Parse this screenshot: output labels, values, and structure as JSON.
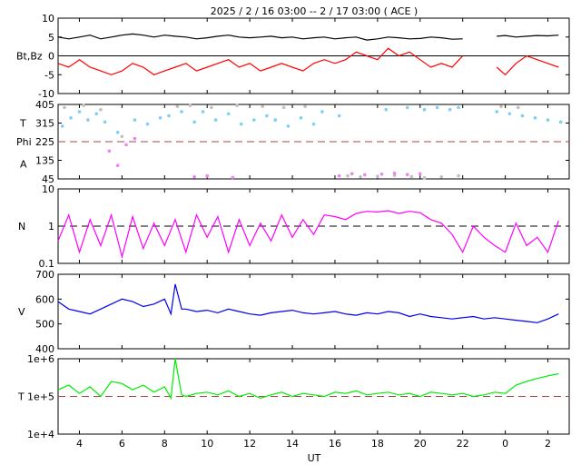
{
  "chart_data": {
    "title": "2025 /  2 / 16   03:00 -- 2 / 17   03:00 ( ACE )",
    "xlabel": "UT",
    "x_tick_labels": [
      "4",
      "6",
      "8",
      "10",
      "12",
      "14",
      "16",
      "18",
      "20",
      "22",
      "0",
      "2"
    ],
    "x_range_hours": [
      3,
      27
    ],
    "panels": [
      {
        "id": "mag",
        "type": "line",
        "ylabel": "Bt,Bz",
        "ylim": [
          -10,
          10
        ],
        "y_ticks": [
          "10",
          "5",
          "0",
          "-5",
          "-10"
        ],
        "zero_line": 0,
        "series": [
          {
            "name": "Bt",
            "color": "#000000",
            "x": [
              3.0,
              3.5,
              4.0,
              4.5,
              5.0,
              5.5,
              6.0,
              6.5,
              7.0,
              7.5,
              8.0,
              8.5,
              9.0,
              9.5,
              10.0,
              10.5,
              11.0,
              11.5,
              12.0,
              12.5,
              13.0,
              13.5,
              14.0,
              14.5,
              15.0,
              15.5,
              16.0,
              16.5,
              17.0,
              17.5,
              18.0,
              18.5,
              19.0,
              19.5,
              20.0,
              20.5,
              21.0,
              21.5,
              22.0,
              null,
              23.6,
              24.0,
              24.5,
              25.0,
              25.5,
              26.0,
              26.5
            ],
            "y": [
              5,
              4.5,
              5,
              5.5,
              4.5,
              5,
              5.5,
              5.8,
              5.5,
              5,
              5.5,
              5.2,
              5,
              4.5,
              4.8,
              5.2,
              5.5,
              5,
              4.8,
              5,
              5.2,
              4.8,
              5,
              4.5,
              4.8,
              5,
              4.5,
              4.8,
              5,
              4.2,
              4.5,
              5,
              4.8,
              4.5,
              4.6,
              5,
              4.8,
              4.4,
              4.5,
              null,
              5.2,
              5.4,
              5,
              5.2,
              5.4,
              5.3,
              5.5
            ]
          },
          {
            "name": "Bz",
            "color": "#ff0000",
            "x": [
              3.0,
              3.5,
              4.0,
              4.5,
              5.0,
              5.5,
              6.0,
              6.5,
              7.0,
              7.5,
              8.0,
              8.5,
              9.0,
              9.5,
              10.0,
              10.5,
              11.0,
              11.5,
              12.0,
              12.5,
              13.0,
              13.5,
              14.0,
              14.5,
              15.0,
              15.5,
              16.0,
              16.5,
              17.0,
              17.5,
              18.0,
              18.5,
              19.0,
              19.5,
              20.0,
              20.5,
              21.0,
              21.5,
              22.0,
              null,
              23.6,
              24.0,
              24.5,
              25.0,
              25.5,
              26.0,
              26.5
            ],
            "y": [
              -2,
              -3,
              -1,
              -3,
              -4,
              -5,
              -4,
              -2,
              -3,
              -5,
              -4,
              -3,
              -2,
              -4,
              -3,
              -2,
              -1,
              -3,
              -2,
              -4,
              -3,
              -2,
              -3,
              -4,
              -2,
              -1,
              -2,
              -1,
              1,
              0,
              -1,
              2,
              0,
              1,
              -1,
              -3,
              -2,
              -3,
              0,
              null,
              -3,
              -5,
              -2,
              0,
              -1,
              -2,
              -3
            ]
          }
        ]
      },
      {
        "id": "angles",
        "type": "scatter",
        "ylabel_top": "T",
        "ylabel_mid": "Phi",
        "ylabel_bot": "A",
        "ylim": [
          45,
          405
        ],
        "y_ticks": [
          "405",
          "315",
          "225",
          "135",
          "45"
        ],
        "dashed_line": 225,
        "dashed_color": "#aa4444",
        "series": [
          {
            "name": "light-blue",
            "color": "#7fcff5",
            "x": [
              3.2,
              3.6,
              4.0,
              4.4,
              4.8,
              5.2,
              5.8,
              6.6,
              7.2,
              7.8,
              8.2,
              8.8,
              9.4,
              9.8,
              10.4,
              11.0,
              11.6,
              12.2,
              12.8,
              13.2,
              13.8,
              14.4,
              15.0,
              15.4,
              16.2,
              18.4,
              19.4,
              20.2,
              20.8,
              21.4,
              21.8,
              23.6,
              24.2,
              24.8,
              25.4,
              26.0,
              26.6
            ],
            "y": [
              300,
              340,
              370,
              330,
              360,
              320,
              270,
              330,
              310,
              340,
              350,
              370,
              320,
              370,
              330,
              360,
              310,
              330,
              350,
              330,
              300,
              340,
              310,
              370,
              350,
              380,
              390,
              380,
              390,
              380,
              390,
              370,
              360,
              350,
              340,
              330,
              320
            ]
          },
          {
            "name": "gray",
            "color": "#c0c0c0",
            "x": [
              3.3,
              4.2,
              5.0,
              6.0,
              8.6,
              9.2,
              10.2,
              11.4,
              12.6,
              13.6,
              14.6,
              16.6,
              17.2,
              18.0,
              18.8,
              19.6,
              20.2,
              21.0,
              21.8,
              23.8,
              24.6
            ],
            "y": [
              390,
              400,
              380,
              250,
              395,
              400,
              390,
              400,
              395,
              390,
              395,
              60,
              55,
              58,
              62,
              56,
              50,
              55,
              60,
              395,
              390
            ]
          },
          {
            "name": "magenta",
            "color": "#ee82ee",
            "x": [
              5.4,
              5.8,
              6.2,
              6.6,
              9.4,
              10.0,
              11.2,
              16.2,
              16.8,
              17.4,
              18.2,
              18.8,
              19.4,
              20.0
            ],
            "y": [
              180,
              110,
              210,
              240,
              55,
              60,
              52,
              60,
              70,
              65,
              68,
              72,
              66,
              70
            ]
          }
        ]
      },
      {
        "id": "density",
        "type": "line",
        "ylabel": "N",
        "scale": "log",
        "ylim": [
          0.1,
          10
        ],
        "y_ticks": [
          "10",
          "1",
          "0.1"
        ],
        "dashed_line": 1,
        "series": [
          {
            "name": "N",
            "color": "#ff00ff",
            "x": [
              3.0,
              3.5,
              4.0,
              4.5,
              5.0,
              5.5,
              6.0,
              6.5,
              7.0,
              7.5,
              8.0,
              8.5,
              9.0,
              9.5,
              10.0,
              10.5,
              11.0,
              11.5,
              12.0,
              12.5,
              13.0,
              13.5,
              14.0,
              14.5,
              15.0,
              15.5,
              16.0,
              16.5,
              17.0,
              17.5,
              18.0,
              18.5,
              19.0,
              19.5,
              20.0,
              20.5,
              21.0,
              21.5,
              22.0,
              22.5,
              23.0,
              23.5,
              24.0,
              24.5,
              25.0,
              25.5,
              26.0,
              26.5
            ],
            "y": [
              0.4,
              2,
              0.2,
              1.5,
              0.3,
              2,
              0.15,
              1.8,
              0.25,
              1.2,
              0.3,
              1.5,
              0.2,
              2,
              0.5,
              1.8,
              0.2,
              1.5,
              0.3,
              1.2,
              0.4,
              2,
              0.5,
              1.5,
              0.6,
              2,
              1.8,
              1.5,
              2.2,
              2.5,
              2.4,
              2.6,
              2.2,
              2.5,
              2.3,
              1.5,
              1.2,
              0.6,
              0.2,
              1,
              0.5,
              0.3,
              0.2,
              1.2,
              0.3,
              0.5,
              0.2,
              1.4
            ]
          }
        ]
      },
      {
        "id": "speed",
        "type": "line",
        "ylabel": "V",
        "ylim": [
          400,
          700
        ],
        "y_ticks": [
          "700",
          "600",
          "500",
          "400"
        ],
        "series": [
          {
            "name": "V",
            "color": "#0000ee",
            "x": [
              3.0,
              3.5,
              4.0,
              4.5,
              5.0,
              5.5,
              6.0,
              6.5,
              7.0,
              7.5,
              8.0,
              8.3,
              8.5,
              8.8,
              9.0,
              9.5,
              10.0,
              10.5,
              11.0,
              11.5,
              12.0,
              12.5,
              13.0,
              13.5,
              14.0,
              14.5,
              15.0,
              15.5,
              16.0,
              16.5,
              17.0,
              17.5,
              18.0,
              18.5,
              19.0,
              19.5,
              20.0,
              20.5,
              21.0,
              21.5,
              22.0,
              22.5,
              23.0,
              23.5,
              24.0,
              24.5,
              25.0,
              25.5,
              26.0,
              26.5
            ],
            "y": [
              590,
              560,
              550,
              540,
              560,
              580,
              600,
              590,
              570,
              580,
              600,
              540,
              660,
              560,
              560,
              550,
              555,
              545,
              560,
              550,
              540,
              535,
              545,
              550,
              555,
              545,
              540,
              545,
              550,
              540,
              535,
              545,
              540,
              550,
              545,
              530,
              540,
              530,
              525,
              520,
              525,
              530,
              520,
              525,
              520,
              515,
              510,
              505,
              520,
              540
            ]
          }
        ]
      },
      {
        "id": "temperature",
        "type": "line",
        "ylabel": "T",
        "scale": "log",
        "ylim": [
          10000,
          1000000
        ],
        "y_ticks": [
          "1e+6",
          "1e+5",
          "1e+4"
        ],
        "dashed_line": 100000,
        "dashed_color": "#aa4444",
        "series": [
          {
            "name": "T",
            "color": "#00ee00",
            "x": [
              3.0,
              3.5,
              4.0,
              4.5,
              5.0,
              5.5,
              6.0,
              6.5,
              7.0,
              7.5,
              8.0,
              8.3,
              8.5,
              8.8,
              9.0,
              9.5,
              10.0,
              10.5,
              11.0,
              11.5,
              12.0,
              12.5,
              13.0,
              13.5,
              14.0,
              14.5,
              15.0,
              15.5,
              16.0,
              16.5,
              17.0,
              17.5,
              18.0,
              18.5,
              19.0,
              19.5,
              20.0,
              20.5,
              21.0,
              21.5,
              22.0,
              22.5,
              23.0,
              23.5,
              24.0,
              24.5,
              25.0,
              25.5,
              26.0,
              26.5
            ],
            "y": [
              150000,
              200000,
              120000,
              180000,
              100000,
              250000,
              220000,
              150000,
              200000,
              130000,
              180000,
              90000,
              1000000,
              110000,
              100000,
              120000,
              130000,
              110000,
              140000,
              100000,
              120000,
              90000,
              110000,
              130000,
              100000,
              120000,
              110000,
              100000,
              130000,
              120000,
              140000,
              110000,
              120000,
              130000,
              110000,
              120000,
              100000,
              130000,
              120000,
              110000,
              120000,
              100000,
              110000,
              130000,
              120000,
              200000,
              250000,
              300000,
              350000,
              400000
            ]
          }
        ]
      }
    ]
  }
}
